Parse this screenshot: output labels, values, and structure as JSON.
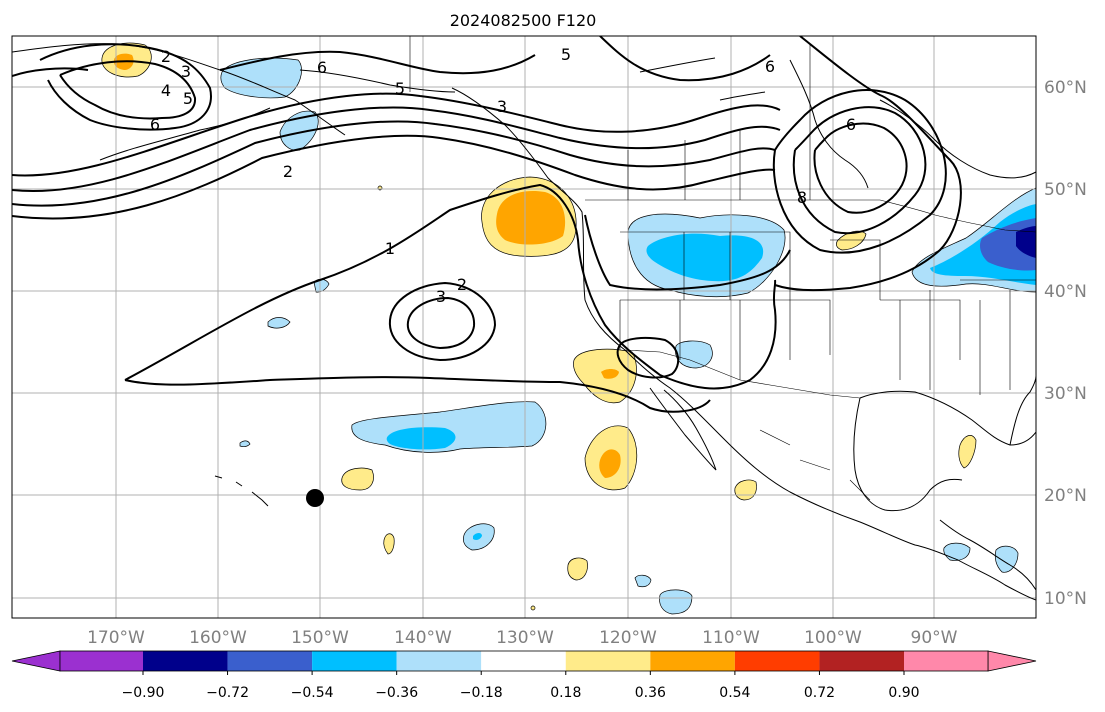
{
  "title": "2024082500 F120",
  "lon_labels": [
    "170°W",
    "160°W",
    "150°W",
    "140°W",
    "130°W",
    "120°W",
    "110°W",
    "100°W",
    "90°W"
  ],
  "lat_labels": [
    "60°N",
    "50°N",
    "40°N",
    "30°N",
    "20°N",
    "10°N"
  ],
  "colorbar": {
    "ticks": [
      "−0.90",
      "−0.72",
      "−0.54",
      "−0.36",
      "−0.18",
      "0.18",
      "0.36",
      "0.54",
      "0.72",
      "0.90"
    ],
    "colors": [
      "#9b30d0",
      "#00008b",
      "#3a5fcd",
      "#00bfff",
      "#aee0fa",
      "#ffffff",
      "#ffeb8a",
      "#ffa500",
      "#ff3d00",
      "#b22222",
      "#ff88aa"
    ]
  },
  "contour_labels": {
    "c_2a": "2",
    "c_3a": "3",
    "c_4": "4",
    "c_5a": "5",
    "c_6a": "6",
    "c_6b": "6",
    "c_5b": "5",
    "c_5c": "5",
    "c_3b": "3",
    "c_6c": "6",
    "c_6d": "6",
    "c_8": "8",
    "c_2b": "2",
    "c_1": "1",
    "c_2c": "2",
    "c_3c": "3"
  },
  "colors": {
    "yellow": "#ffeb8a",
    "orange": "#ffa500",
    "lightblue": "#aee0fa",
    "skyblue": "#00bfff",
    "blue": "#3a5fcd",
    "navy": "#00008b"
  }
}
